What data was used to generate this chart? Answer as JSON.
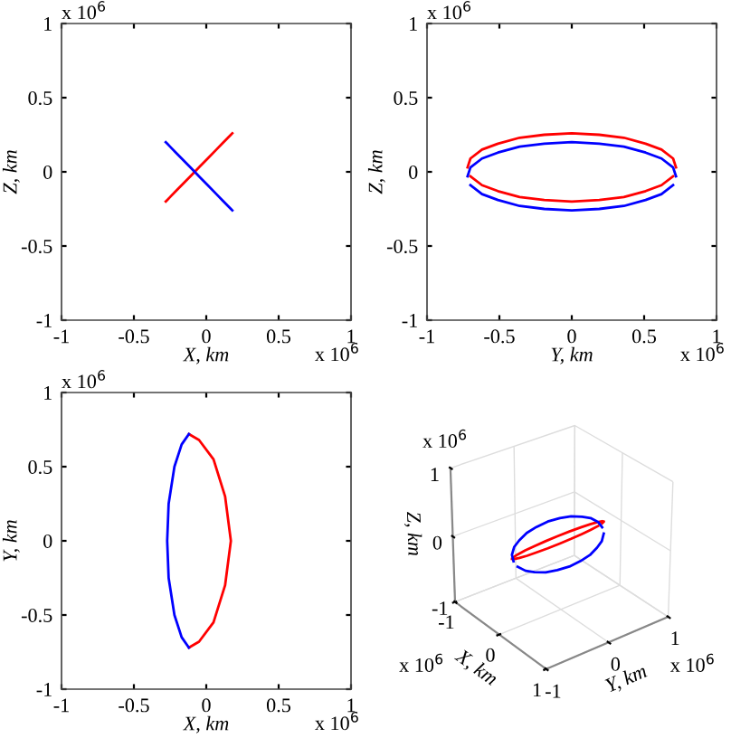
{
  "chart_data": [
    {
      "type": "line",
      "xlabel": "X, km",
      "ylabel": "Z, km",
      "xlim": [
        -1,
        1
      ],
      "ylim": [
        -1,
        1
      ],
      "xticks": [
        -1,
        -0.5,
        0,
        0.5,
        1
      ],
      "yticks": [
        -1,
        -0.5,
        0,
        0.5,
        1
      ],
      "annotations": [
        "x 10$^{6}$",
        "x 10$^{6}$"
      ],
      "series": [
        {
          "color": "#ff0000",
          "x": [
            0.18,
            0.17,
            0.15,
            0.11,
            0.07,
            0.01,
            -0.05,
            -0.11,
            -0.17,
            -0.21,
            -0.25,
            -0.27,
            -0.28
          ],
          "values": [
            0.26,
            0.25,
            0.23,
            0.19,
            0.15,
            0.09,
            0.03,
            -0.03,
            -0.09,
            -0.13,
            -0.17,
            -0.19,
            -0.2
          ]
        },
        {
          "color": "#0000ff",
          "x": [
            -0.28,
            -0.27,
            -0.25,
            -0.21,
            -0.17,
            -0.11,
            -0.05,
            0.01,
            0.07,
            0.11,
            0.15,
            0.17,
            0.18
          ],
          "values": [
            0.2,
            0.19,
            0.17,
            0.13,
            0.09,
            0.03,
            -0.03,
            -0.09,
            -0.15,
            -0.19,
            -0.23,
            -0.25,
            -0.26
          ]
        }
      ]
    },
    {
      "type": "line",
      "xlabel": "Y, km",
      "ylabel": "Z, km",
      "xlim": [
        -1,
        1
      ],
      "ylim": [
        -1,
        1
      ],
      "xticks": [
        -1,
        -0.5,
        0,
        0.5,
        1
      ],
      "yticks": [
        -1,
        -0.5,
        0,
        0.5,
        1
      ],
      "annotations": [
        "x 10$^{6}$",
        "x 10$^{6}$"
      ],
      "series": [
        {
          "color": "#ff0000",
          "x": [
            -0.72,
            -0.7,
            -0.62,
            -0.51,
            -0.36,
            -0.19,
            0,
            0.19,
            0.36,
            0.51,
            0.62,
            0.7,
            0.72
          ],
          "values": [
            0.03,
            0.09,
            0.15,
            0.19,
            0.23,
            0.25,
            0.26,
            0.25,
            0.23,
            0.19,
            0.15,
            0.09,
            0.03
          ]
        },
        {
          "color": "#ff0000",
          "x": [
            0.7,
            0.62,
            0.51,
            0.36,
            0.19,
            0,
            -0.19,
            -0.36,
            -0.51,
            -0.62,
            -0.7
          ],
          "values": [
            -0.03,
            -0.09,
            -0.13,
            -0.17,
            -0.19,
            -0.2,
            -0.19,
            -0.17,
            -0.13,
            -0.09,
            -0.03
          ]
        },
        {
          "color": "#0000ff",
          "x": [
            -0.72,
            -0.7,
            -0.62,
            -0.51,
            -0.36,
            -0.19,
            0,
            0.19,
            0.36,
            0.51,
            0.62,
            0.7,
            0.72
          ],
          "values": [
            -0.03,
            0.03,
            0.09,
            0.13,
            0.17,
            0.19,
            0.2,
            0.19,
            0.17,
            0.13,
            0.09,
            0.03,
            -0.03
          ]
        },
        {
          "color": "#0000ff",
          "x": [
            0.7,
            0.62,
            0.51,
            0.36,
            0.19,
            0,
            -0.19,
            -0.36,
            -0.51,
            -0.62,
            -0.7
          ],
          "values": [
            -0.09,
            -0.15,
            -0.19,
            -0.23,
            -0.25,
            -0.26,
            -0.25,
            -0.23,
            -0.19,
            -0.15,
            -0.09
          ]
        }
      ]
    },
    {
      "type": "line",
      "xlabel": "X, km",
      "ylabel": "Y, km",
      "xlim": [
        -1,
        1
      ],
      "ylim": [
        -1,
        1
      ],
      "xticks": [
        -1,
        -0.5,
        0,
        0.5,
        1
      ],
      "yticks": [
        -1,
        -0.5,
        0,
        0.5,
        1
      ],
      "annotations": [
        "x 10$^{6}$",
        "x 10$^{6}$"
      ],
      "series": [
        {
          "color": "#ff0000",
          "x": [
            -0.12,
            -0.05,
            0.05,
            0.13,
            0.17,
            0.13,
            0.05,
            -0.05,
            -0.12
          ],
          "values": [
            0.72,
            0.68,
            0.55,
            0.3,
            0,
            -0.3,
            -0.55,
            -0.68,
            -0.72
          ]
        },
        {
          "color": "#0000ff",
          "x": [
            -0.12,
            -0.17,
            -0.22,
            -0.26,
            -0.27,
            -0.26,
            -0.22,
            -0.17,
            -0.12
          ],
          "values": [
            0.72,
            0.65,
            0.5,
            0.25,
            0,
            -0.25,
            -0.5,
            -0.65,
            -0.72
          ]
        }
      ]
    },
    {
      "type": "other",
      "xlabel": "X, km",
      "ylabel": "Y, km",
      "annotations": [
        "Z, km",
        "x 10$^{6}$",
        "x 10$^{6}$",
        "x 10$^{6}$",
        "-1",
        "0",
        "1",
        "-1",
        "0",
        "1",
        "-1",
        "0",
        "1"
      ]
    }
  ]
}
